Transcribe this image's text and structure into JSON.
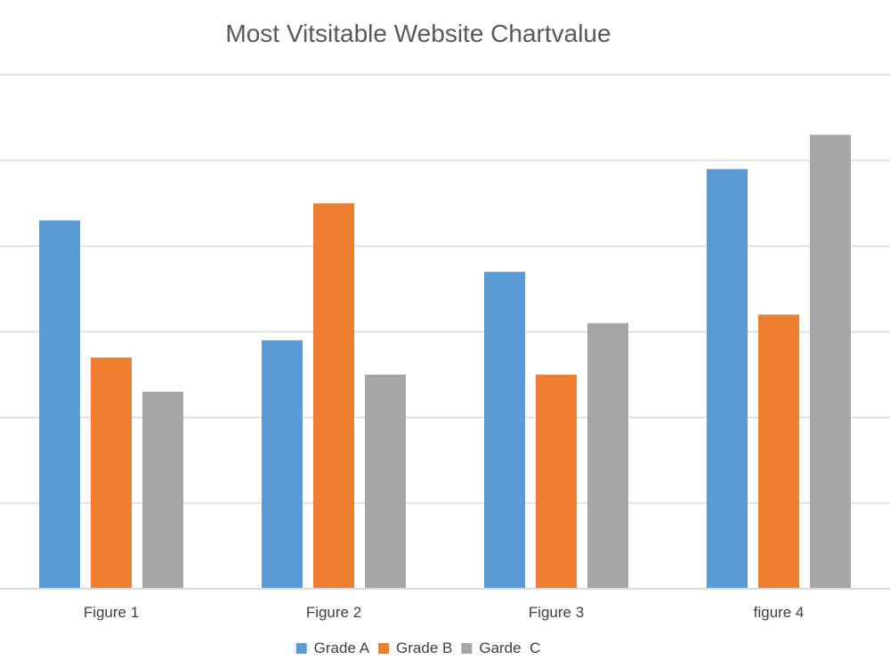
{
  "chart_data": {
    "type": "bar",
    "title": "Most Vitsitable Website Chartvalue",
    "xlabel": "",
    "ylabel": "",
    "categories": [
      "Figure 1",
      "Figure 2",
      "Figure 3",
      "figure 4"
    ],
    "series": [
      {
        "name": "Grade A",
        "color": "#5b9bd5",
        "values": [
          4.3,
          2.9,
          3.7,
          4.9
        ]
      },
      {
        "name": "Grade B",
        "color": "#ed7d31",
        "values": [
          2.7,
          4.5,
          2.5,
          3.2
        ]
      },
      {
        "name": "Garde  C",
        "color": "#a5a5a5",
        "values": [
          2.3,
          2.5,
          3.1,
          5.3
        ]
      }
    ],
    "ylim": [
      0,
      6
    ],
    "grid": true,
    "y_tick_labels_visible": false,
    "legend_position": "bottom"
  }
}
